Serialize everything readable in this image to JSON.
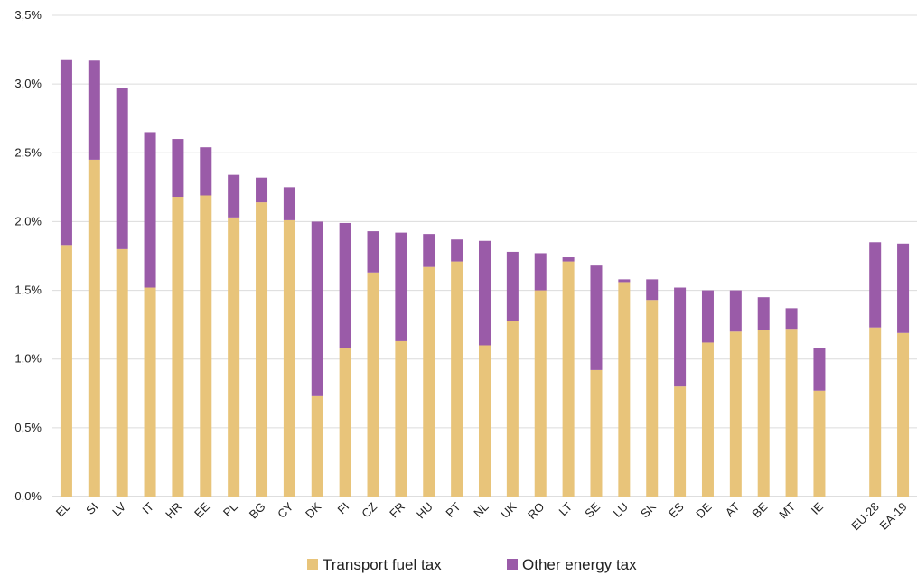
{
  "chart_data": {
    "type": "bar",
    "stacked": true,
    "title": "",
    "xlabel": "",
    "ylabel": "",
    "ylim": [
      0,
      3.5
    ],
    "y_ticks": [
      "0,0%",
      "0,5%",
      "1,0%",
      "1,5%",
      "2,0%",
      "2,5%",
      "3,0%",
      "3,5%"
    ],
    "grid": true,
    "legend_position": "bottom",
    "categories": [
      "EL",
      "SI",
      "LV",
      "IT",
      "HR",
      "EE",
      "PL",
      "BG",
      "CY",
      "DK",
      "FI",
      "CZ",
      "FR",
      "HU",
      "PT",
      "NL",
      "UK",
      "RO",
      "LT",
      "SE",
      "LU",
      "SK",
      "ES",
      "DE",
      "AT",
      "BE",
      "MT",
      "IE",
      "",
      "EU-28",
      "EA-19"
    ],
    "series": [
      {
        "name": "Transport fuel tax",
        "color": "#e8c47a",
        "values": [
          1.83,
          2.45,
          1.8,
          1.52,
          2.18,
          2.19,
          2.03,
          2.14,
          2.01,
          0.73,
          1.08,
          1.63,
          1.13,
          1.67,
          1.71,
          1.1,
          1.28,
          1.5,
          1.71,
          0.92,
          1.56,
          1.43,
          0.8,
          1.12,
          1.2,
          1.21,
          1.22,
          0.77,
          null,
          1.23,
          1.19
        ]
      },
      {
        "name": "Other energy tax",
        "color": "#9a5ba8",
        "values": [
          1.35,
          0.72,
          1.17,
          1.13,
          0.42,
          0.35,
          0.31,
          0.18,
          0.24,
          1.27,
          0.91,
          0.3,
          0.79,
          0.24,
          0.16,
          0.76,
          0.5,
          0.27,
          0.03,
          0.76,
          0.02,
          0.15,
          0.72,
          0.38,
          0.3,
          0.24,
          0.15,
          0.31,
          null,
          0.62,
          0.65
        ]
      }
    ]
  }
}
